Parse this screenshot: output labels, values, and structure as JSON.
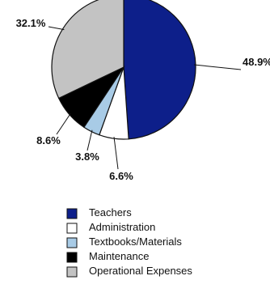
{
  "chart_data": {
    "type": "pie",
    "title": "",
    "start_angle_deg": 0,
    "direction": "clockwise",
    "legend_position": "bottom",
    "slices": [
      {
        "label": "Teachers",
        "value": 48.9,
        "value_label": "48.9%",
        "color": "#0d1f8a"
      },
      {
        "label": "Administration",
        "value": 6.6,
        "value_label": "6.6%",
        "color": "#ffffff"
      },
      {
        "label": "Textbooks/Materials",
        "value": 3.8,
        "value_label": "3.8%",
        "color": "#a8cbe6"
      },
      {
        "label": "Maintenance",
        "value": 8.6,
        "value_label": "8.6%",
        "color": "#000000"
      },
      {
        "label": "Operational Expenses",
        "value": 32.1,
        "value_label": "32.1%",
        "color": "#c3c3c3"
      }
    ]
  }
}
